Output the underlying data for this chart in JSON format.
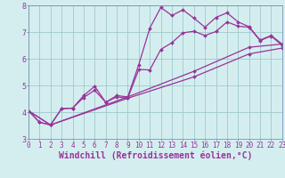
{
  "xlabel": "Windchill (Refroidissement éolien,°C)",
  "bg_color": "#d4eef0",
  "line_color": "#993399",
  "grid_color": "#a0c8cc",
  "spine_color": "#6688aa",
  "xmin": 0,
  "xmax": 23,
  "ymin": 3,
  "ymax": 8,
  "lines": [
    {
      "x": [
        0,
        1,
        2,
        3,
        4,
        5,
        6,
        7,
        8,
        9,
        10,
        11,
        12,
        13,
        14,
        15,
        16,
        17,
        18,
        19,
        20,
        21,
        22,
        23
      ],
      "y": [
        4.05,
        3.62,
        3.52,
        4.13,
        4.15,
        4.62,
        4.97,
        4.37,
        4.62,
        4.57,
        5.78,
        7.15,
        7.92,
        7.62,
        7.83,
        7.52,
        7.18,
        7.55,
        7.72,
        7.38,
        7.2,
        6.7,
        6.87,
        6.55
      ]
    },
    {
      "x": [
        0,
        1,
        2,
        3,
        4,
        5,
        6,
        7,
        8,
        9,
        10,
        11,
        12,
        13,
        14,
        15,
        16,
        17,
        18,
        19,
        20,
        21,
        22,
        23
      ],
      "y": [
        4.05,
        3.62,
        3.52,
        4.13,
        4.15,
        4.55,
        4.82,
        4.37,
        4.57,
        4.52,
        5.6,
        5.58,
        6.35,
        6.6,
        6.97,
        7.03,
        6.87,
        7.02,
        7.38,
        7.22,
        7.18,
        6.68,
        6.85,
        6.5
      ]
    },
    {
      "x": [
        0,
        2,
        9,
        15,
        20,
        23
      ],
      "y": [
        4.05,
        3.52,
        4.57,
        5.53,
        6.43,
        6.55
      ]
    },
    {
      "x": [
        0,
        2,
        9,
        15,
        20,
        23
      ],
      "y": [
        4.05,
        3.52,
        4.52,
        5.32,
        6.18,
        6.4
      ]
    }
  ],
  "tick_label_fontsize": 5.5,
  "axis_label_fontsize": 7.0,
  "marker_size": 2.0,
  "linewidth": 0.9
}
